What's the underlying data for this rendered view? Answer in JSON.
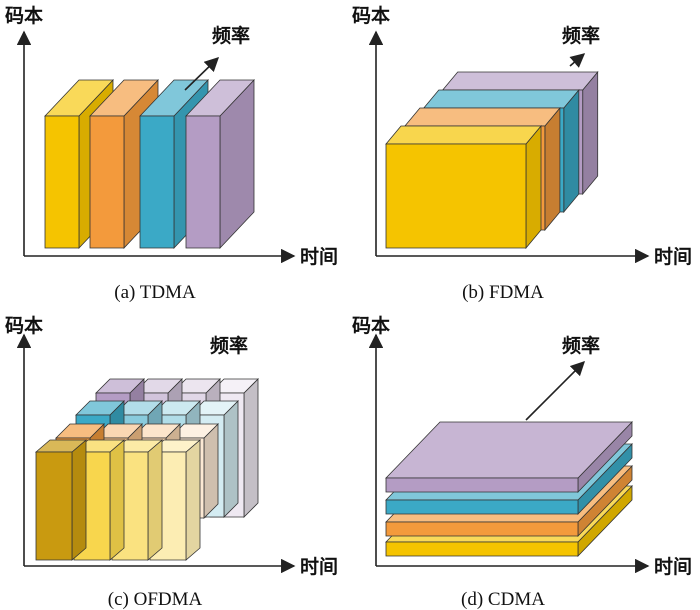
{
  "axis_labels": {
    "code": "码本",
    "time": "时间",
    "freq": "频率"
  },
  "panels": [
    {
      "caption": "(a) TDMA"
    },
    {
      "caption": "(b) FDMA"
    },
    {
      "caption": "(c) OFDMA"
    },
    {
      "caption": "(d) CDMA"
    }
  ],
  "colors": {
    "yellow": "#F5C400",
    "orange": "#F39A3C",
    "blue": "#3BA9C6",
    "purple": "#B49CC4",
    "dark_yellow": "#C99A10"
  }
}
